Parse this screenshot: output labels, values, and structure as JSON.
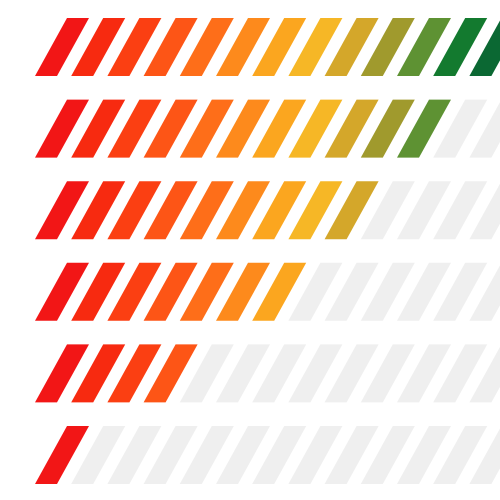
{
  "colors": {
    "empty": "#efefef",
    "segment_gradient": [
      "#f21616",
      "#f72a10",
      "#fb3f12",
      "#fd5516",
      "#fe6e19",
      "#fd8a1c",
      "#fba61f",
      "#f6b726",
      "#d4a72a",
      "#a09a2d",
      "#5e9233",
      "#137a2f",
      "#0b6833"
    ]
  },
  "meters": [
    {
      "filled": 13,
      "total": 13
    },
    {
      "filled": 11,
      "total": 13
    },
    {
      "filled": 9,
      "total": 13
    },
    {
      "filled": 7,
      "total": 13
    },
    {
      "filled": 4,
      "total": 13
    },
    {
      "filled": 1,
      "total": 13
    }
  ]
}
